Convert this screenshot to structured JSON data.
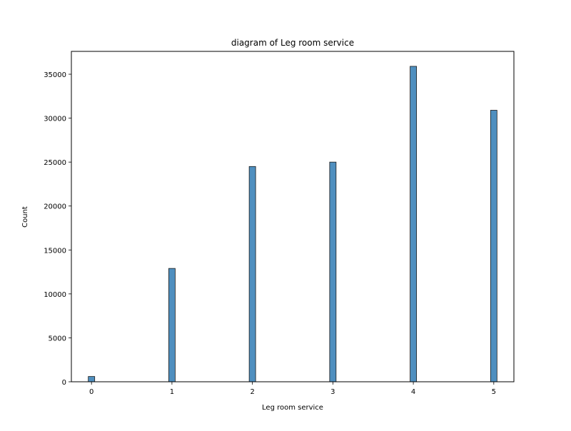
{
  "chart_data": {
    "type": "bar",
    "title": "diagram of Leg room service",
    "xlabel": "Leg room service",
    "ylabel": "Count",
    "categories": [
      0,
      1,
      2,
      3,
      4,
      5
    ],
    "values": [
      600,
      12900,
      24500,
      25000,
      35900,
      30900
    ],
    "x_ticks": [
      0,
      1,
      2,
      3,
      4,
      5
    ],
    "y_ticks": [
      0,
      5000,
      10000,
      15000,
      20000,
      25000,
      30000,
      35000
    ],
    "xlim": [
      -0.25,
      5.25
    ],
    "ylim": [
      0,
      37600
    ],
    "bar_color": "#4f8fbf",
    "bar_edge_color": "#1a1a1a",
    "grid": false,
    "legend": "none"
  }
}
